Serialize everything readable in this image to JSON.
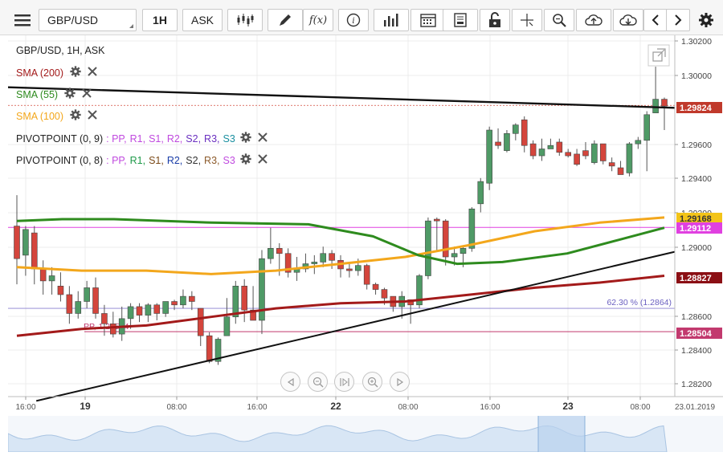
{
  "toolbar": {
    "symbol": "GBP/USD",
    "timeframe": "1H",
    "price_type": "ASK",
    "icons": [
      "menu-icon",
      "candles-icon",
      "draw-pencil-icon",
      "function-icon",
      "info-icon",
      "bars-icon",
      "calendar-icon",
      "document-icon",
      "lock-icon",
      "crosshair-icon",
      "zoom-icon",
      "cloud-upload-icon",
      "cloud-download-icon",
      "chevron-left-icon",
      "chevron-right-icon",
      "settings-icon"
    ],
    "fx_label": "f(x)"
  },
  "legend": {
    "title": "GBP/USD, 1H, ASK",
    "sma": [
      {
        "label": "SMA (200)",
        "color": "#a31a1a"
      },
      {
        "label": "SMA (55)",
        "color": "#2e8b1e"
      },
      {
        "label": "SMA (100)",
        "color": "#f3a71c"
      }
    ],
    "pivots": [
      {
        "label": "PIVOTPOINT (0, 9)",
        "tokens": [
          {
            "t": ": PP,",
            "c": "#c04adf"
          },
          {
            "t": "R1,",
            "c": "#c04adf"
          },
          {
            "t": "S1,",
            "c": "#c04adf"
          },
          {
            "t": "R2,",
            "c": "#c04adf"
          },
          {
            "t": "S2,",
            "c": "#6a2fc0"
          },
          {
            "t": "R3,",
            "c": "#6a2fc0"
          },
          {
            "t": "S3",
            "c": "#1a8fa0"
          }
        ]
      },
      {
        "label": "PIVOTPOINT (0, 8)",
        "tokens": [
          {
            "t": ": PP,",
            "c": "#c04adf"
          },
          {
            "t": "R1,",
            "c": "#1f9a4a"
          },
          {
            "t": "S1,",
            "c": "#7b4a18"
          },
          {
            "t": "R2,",
            "c": "#1a3da8"
          },
          {
            "t": "S2,",
            "c": "#333333"
          },
          {
            "t": "R3,",
            "c": "#8c5a2a"
          },
          {
            "t": "S3",
            "c": "#c04adf"
          }
        ]
      }
    ]
  },
  "y_axis": {
    "labels": [
      "1.30200",
      "1.30000",
      "1.29600",
      "1.29400",
      "1.29200",
      "1.29000",
      "1.28600",
      "1.28400",
      "1.28200"
    ],
    "price_tags": [
      {
        "value": "1.29824",
        "bg": "#c0392b",
        "fg": "#ffffff"
      },
      {
        "value": "1.29168",
        "bg": "#f3c418",
        "fg": "#333333"
      },
      {
        "value": "1.29112",
        "bg": "#e040e0",
        "fg": "#ffffff"
      },
      {
        "value": "1.28827",
        "bg": "#8b0f14",
        "fg": "#ffffff"
      },
      {
        "value": "1.28504",
        "bg": "#c2396e",
        "fg": "#ffffff"
      }
    ]
  },
  "x_axis": {
    "labels": [
      {
        "text": "16:00",
        "bold": false
      },
      {
        "text": "19",
        "bold": true
      },
      {
        "text": "08:00",
        "bold": false
      },
      {
        "text": "16:00",
        "bold": false
      },
      {
        "text": "22",
        "bold": true
      },
      {
        "text": "08:00",
        "bold": false
      },
      {
        "text": "16:00",
        "bold": false
      },
      {
        "text": "23",
        "bold": true
      },
      {
        "text": "08:00",
        "bold": false
      },
      {
        "text": "23.01.2019",
        "bold": false
      }
    ]
  },
  "annotations": {
    "fib_label": "62.30 % (1.2864)",
    "pp_label": "PP, 1.28504"
  },
  "colors": {
    "up": "#4f9a66",
    "down": "#d4453c",
    "sma200": "#a31a1a",
    "sma55": "#2e8b1e",
    "sma100": "#f3a71c",
    "trend": "#111111",
    "pivot": "#e040e0",
    "pp": "#c2396e"
  },
  "chart_data": {
    "type": "candlestick",
    "instrument": "GBP/USD",
    "interval": "1H",
    "ylim": [
      1.2812,
      1.3024
    ],
    "candles": [
      [
        1.2912,
        1.2893,
        1.293,
        1.2878
      ],
      [
        1.2895,
        1.291,
        1.2912,
        1.2883
      ],
      [
        1.2908,
        1.2887,
        1.2912,
        1.2878
      ],
      [
        1.2887,
        1.288,
        1.2892,
        1.2872
      ],
      [
        1.288,
        1.2883,
        1.2888,
        1.2872
      ],
      [
        1.2877,
        1.2872,
        1.2885,
        1.2868
      ],
      [
        1.2872,
        1.2861,
        1.2877,
        1.2855
      ],
      [
        1.2861,
        1.2868,
        1.2874,
        1.2858
      ],
      [
        1.2868,
        1.2876,
        1.288,
        1.2864
      ],
      [
        1.2876,
        1.2861,
        1.2882,
        1.2858
      ],
      [
        1.2861,
        1.2855,
        1.2866,
        1.2848
      ],
      [
        1.2855,
        1.2849,
        1.2862,
        1.2847
      ],
      [
        1.2849,
        1.2858,
        1.2865,
        1.2845
      ],
      [
        1.2858,
        1.2865,
        1.2867,
        1.2852
      ],
      [
        1.2865,
        1.286,
        1.2867,
        1.2856
      ],
      [
        1.286,
        1.2866,
        1.2867,
        1.2856
      ],
      [
        1.2866,
        1.2861,
        1.2867,
        1.2857
      ],
      [
        1.2861,
        1.2868,
        1.2868,
        1.2859
      ],
      [
        1.2868,
        1.2866,
        1.2869,
        1.2863
      ],
      [
        1.2866,
        1.2871,
        1.2875,
        1.2864
      ],
      [
        1.2871,
        1.2868,
        1.2874,
        1.2863
      ],
      [
        1.2864,
        1.2848,
        1.2864,
        1.2842
      ],
      [
        1.2848,
        1.2833,
        1.285,
        1.2832
      ],
      [
        1.2833,
        1.2846,
        1.2847,
        1.2831
      ],
      [
        1.2848,
        1.2859,
        1.287,
        1.2848
      ],
      [
        1.2859,
        1.2877,
        1.288,
        1.2855
      ],
      [
        1.2877,
        1.2863,
        1.2881,
        1.2856
      ],
      [
        1.2863,
        1.2857,
        1.2877,
        1.2857
      ],
      [
        1.2857,
        1.2893,
        1.2898,
        1.2849
      ],
      [
        1.2893,
        1.2899,
        1.2911,
        1.289
      ],
      [
        1.2899,
        1.2896,
        1.2902,
        1.2883
      ],
      [
        1.2896,
        1.2885,
        1.2899,
        1.2882
      ],
      [
        1.2885,
        1.2887,
        1.2894,
        1.288
      ],
      [
        1.2887,
        1.289,
        1.2896,
        1.2885
      ],
      [
        1.289,
        1.2891,
        1.2895,
        1.2884
      ],
      [
        1.2891,
        1.2896,
        1.29,
        1.2888
      ],
      [
        1.2896,
        1.2892,
        1.2898,
        1.2887
      ],
      [
        1.2892,
        1.2887,
        1.2895,
        1.2882
      ],
      [
        1.2887,
        1.2886,
        1.2891,
        1.2882
      ],
      [
        1.2886,
        1.2889,
        1.2893,
        1.2883
      ],
      [
        1.2889,
        1.2878,
        1.289,
        1.2875
      ],
      [
        1.2878,
        1.2875,
        1.2879,
        1.2872
      ],
      [
        1.2875,
        1.287,
        1.2876,
        1.2866
      ],
      [
        1.2871,
        1.2865,
        1.2871,
        1.2862
      ],
      [
        1.2865,
        1.2871,
        1.2874,
        1.2858
      ],
      [
        1.2869,
        1.2866,
        1.2869,
        1.2855
      ],
      [
        1.2866,
        1.2883,
        1.2884,
        1.2864
      ],
      [
        1.2883,
        1.2915,
        1.2917,
        1.2881
      ],
      [
        1.2916,
        1.2915,
        1.2917,
        1.2897
      ],
      [
        1.2915,
        1.2894,
        1.2916,
        1.2889
      ],
      [
        1.2894,
        1.2896,
        1.29,
        1.2889
      ],
      [
        1.2896,
        1.2899,
        1.29,
        1.2888
      ],
      [
        1.2899,
        1.2922,
        1.2923,
        1.2897
      ],
      [
        1.2925,
        1.2938,
        1.294,
        1.292
      ],
      [
        1.2937,
        1.2968,
        1.297,
        1.2933
      ],
      [
        1.2961,
        1.2959,
        1.2969,
        1.2957
      ],
      [
        1.2956,
        1.2966,
        1.2968,
        1.2955
      ],
      [
        1.2966,
        1.2971,
        1.2972,
        1.2962
      ],
      [
        1.2974,
        1.2959,
        1.2976,
        1.2955
      ],
      [
        1.296,
        1.2953,
        1.2962,
        1.2951
      ],
      [
        1.2953,
        1.2957,
        1.2963,
        1.295
      ],
      [
        1.2957,
        1.2959,
        1.2963,
        1.2957
      ],
      [
        1.2961,
        1.2955,
        1.2963,
        1.2953
      ],
      [
        1.2955,
        1.2953,
        1.2957,
        1.2952
      ],
      [
        1.2954,
        1.2948,
        1.2957,
        1.2947
      ],
      [
        1.2956,
        1.2953,
        1.2961,
        1.2951
      ],
      [
        1.2949,
        1.296,
        1.2962,
        1.2948
      ],
      [
        1.296,
        1.295,
        1.296,
        1.2948
      ],
      [
        1.2949,
        1.2947,
        1.2952,
        1.2944
      ],
      [
        1.2946,
        1.2942,
        1.295,
        1.2944
      ],
      [
        1.2943,
        1.296,
        1.2961,
        1.2941
      ],
      [
        1.296,
        1.2962,
        1.2964,
        1.2957
      ],
      [
        1.2962,
        1.2977,
        1.2979,
        1.2944
      ],
      [
        1.2978,
        1.2986,
        1.3005,
        1.2978
      ],
      [
        1.2986,
        1.2982,
        1.2987,
        1.2968
      ]
    ],
    "sma200": [
      [
        0,
        1.2848
      ],
      [
        0.1,
        1.2852
      ],
      [
        0.2,
        1.2854
      ],
      [
        0.3,
        1.2859
      ],
      [
        0.4,
        1.2864
      ],
      [
        0.5,
        1.2867
      ],
      [
        0.6,
        1.2868
      ],
      [
        0.7,
        1.2872
      ],
      [
        0.8,
        1.2876
      ],
      [
        0.9,
        1.2879
      ],
      [
        1,
        1.2883
      ]
    ],
    "sma55": [
      [
        0,
        1.2915
      ],
      [
        0.07,
        1.2916
      ],
      [
        0.15,
        1.2916
      ],
      [
        0.3,
        1.2914
      ],
      [
        0.45,
        1.2913
      ],
      [
        0.55,
        1.2906
      ],
      [
        0.62,
        1.2895
      ],
      [
        0.68,
        1.289
      ],
      [
        0.75,
        1.2891
      ],
      [
        0.85,
        1.2896
      ],
      [
        0.93,
        1.2904
      ],
      [
        1,
        1.2911
      ]
    ],
    "sma100": [
      [
        0,
        1.2888
      ],
      [
        0.1,
        1.2886
      ],
      [
        0.2,
        1.2886
      ],
      [
        0.3,
        1.2884
      ],
      [
        0.4,
        1.2886
      ],
      [
        0.5,
        1.289
      ],
      [
        0.6,
        1.2894
      ],
      [
        0.7,
        1.2901
      ],
      [
        0.8,
        1.2909
      ],
      [
        0.9,
        1.2914
      ],
      [
        1,
        1.2917
      ]
    ],
    "trendline_upper": [
      [
        0,
        1.2993
      ],
      [
        1,
        1.2981
      ]
    ],
    "trendline_lower": [
      [
        0.03,
        1.281
      ],
      [
        1,
        1.2897
      ]
    ],
    "pivot_level": 1.29112,
    "pp_level": 1.28504,
    "fib_level": 1.2864,
    "last_price": 1.29824
  }
}
